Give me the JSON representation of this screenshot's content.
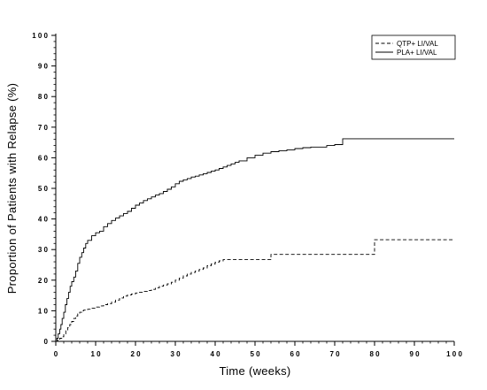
{
  "chart_data": {
    "type": "line",
    "title": "",
    "xlabel": "Time (weeks)",
    "ylabel": "Proportion of Patients with Relapse (%)",
    "xlim": [
      0,
      100
    ],
    "ylim": [
      0,
      100
    ],
    "xticks": [
      0,
      10,
      20,
      30,
      40,
      50,
      60,
      70,
      80,
      90,
      100
    ],
    "yticks": [
      0,
      10,
      20,
      30,
      40,
      50,
      60,
      70,
      80,
      90,
      100
    ],
    "xtick_labels": [
      "0",
      "1 0",
      "2 0",
      "3 0",
      "4 0",
      "5 0",
      "6 0",
      "7 0",
      "8 0",
      "9 0",
      "1 0 0"
    ],
    "ytick_labels": [
      "0",
      "1 0",
      "2 0",
      "3 0",
      "4 0",
      "5 0",
      "6 0",
      "7 0",
      "8 0",
      "9 0",
      "1 0 0"
    ],
    "grid": false,
    "legend_position": "top-right",
    "step": true,
    "series": [
      {
        "name": "QTP+ LI/VAL",
        "style": "dashed",
        "color": "#000000",
        "x": [
          0,
          0.5,
          1,
          1.5,
          2,
          2.5,
          3,
          3.5,
          4,
          4.5,
          5,
          5.5,
          6,
          6.5,
          7,
          8,
          9,
          10,
          11,
          12,
          13,
          14,
          15,
          16,
          17,
          18,
          19,
          20,
          21,
          22,
          23,
          24,
          25,
          26,
          27,
          28,
          29,
          30,
          31,
          32,
          33,
          34,
          35,
          36,
          37,
          38,
          39,
          40,
          41,
          42,
          44,
          46,
          48,
          50,
          52,
          54,
          56,
          60,
          64,
          70,
          75,
          80,
          100
        ],
        "y": [
          0,
          0.5,
          1,
          1.5,
          2.5,
          3.5,
          4.5,
          5.5,
          6.5,
          7.5,
          8.3,
          9,
          9.5,
          10,
          10.2,
          10.5,
          10.8,
          11.2,
          11.6,
          12,
          12.3,
          12.8,
          13.5,
          14.2,
          14.8,
          15.2,
          15.5,
          15.8,
          16,
          16.3,
          16.6,
          17,
          17.5,
          18,
          18.4,
          18.8,
          19.3,
          20,
          20.7,
          21.4,
          22,
          22.5,
          23,
          23.5,
          24,
          24.7,
          25.3,
          25.9,
          26.3,
          26.7,
          26.7,
          26.7,
          26.7,
          26.7,
          26.7,
          28.4,
          28.4,
          28.4,
          28.4,
          28.4,
          28.4,
          33.2,
          33.2
        ]
      },
      {
        "name": "PLA+ LI/VAL",
        "style": "solid",
        "color": "#000000",
        "x": [
          0,
          0.3,
          0.6,
          1,
          1.3,
          1.6,
          2,
          2.4,
          2.8,
          3.2,
          3.6,
          4,
          4.5,
          5,
          5.5,
          6,
          6.5,
          7,
          7.5,
          8,
          9,
          10,
          11,
          12,
          13,
          14,
          15,
          16,
          17,
          18,
          19,
          20,
          21,
          22,
          23,
          24,
          25,
          26,
          27,
          28,
          29,
          30,
          31,
          32,
          33,
          34,
          35,
          36,
          37,
          38,
          39,
          40,
          41,
          42,
          43,
          44,
          45,
          46,
          48,
          50,
          52,
          54,
          56,
          58,
          60,
          62,
          64,
          66,
          68,
          70,
          72,
          100
        ],
        "y": [
          0,
          1,
          2.5,
          4,
          5.5,
          7.5,
          9.5,
          12,
          14,
          16,
          18,
          19.5,
          21,
          23,
          25.5,
          27.5,
          29,
          30.5,
          32,
          33,
          34.5,
          35.5,
          36,
          37.5,
          38.5,
          39.5,
          40.3,
          41,
          41.8,
          42.5,
          43.5,
          44.5,
          45.2,
          46,
          46.6,
          47.2,
          47.8,
          48.3,
          49,
          49.7,
          50.5,
          51.5,
          52.3,
          52.8,
          53.2,
          53.7,
          54,
          54.4,
          54.8,
          55.2,
          55.6,
          56,
          56.5,
          57,
          57.5,
          58,
          58.5,
          59,
          60,
          60.8,
          61.5,
          62,
          62.3,
          62.6,
          63,
          63.3,
          63.5,
          63.5,
          64,
          64.3,
          66.2,
          66.2
        ]
      }
    ]
  }
}
